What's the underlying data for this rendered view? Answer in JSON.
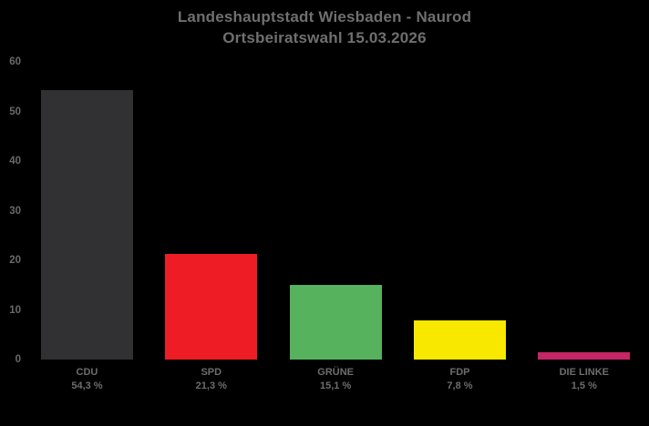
{
  "title": {
    "line1": "Landeshauptstadt Wiesbaden - Naurod",
    "line2": "Ortsbeiratswahl 15.03.2026"
  },
  "colors": {
    "background": "#000000",
    "title_text": "#6f6f6f",
    "axis_text": "#696969",
    "label_text": "#6d6d6d"
  },
  "chart_data": {
    "type": "bar",
    "title": "Landeshauptstadt Wiesbaden - Naurod",
    "subtitle": "Ortsbeiratswahl 15.03.2026",
    "categories": [
      "CDU",
      "SPD",
      "GRÜNE",
      "FDP",
      "DIE LINKE"
    ],
    "values": [
      54.3,
      21.3,
      15.1,
      7.8,
      1.5
    ],
    "value_labels": [
      "54,3 %",
      "21,3 %",
      "15,1 %",
      "7,8 %",
      "1,5 %"
    ],
    "bar_colors": [
      "#313133",
      "#ee1c24",
      "#56b25c",
      "#f8e800",
      "#c52665"
    ],
    "xlabel": "",
    "ylabel": "",
    "ylim": [
      0,
      60
    ],
    "yticks": [
      0,
      10,
      20,
      30,
      40,
      50,
      60
    ],
    "grid": false,
    "legend": false,
    "background": "#000000"
  }
}
